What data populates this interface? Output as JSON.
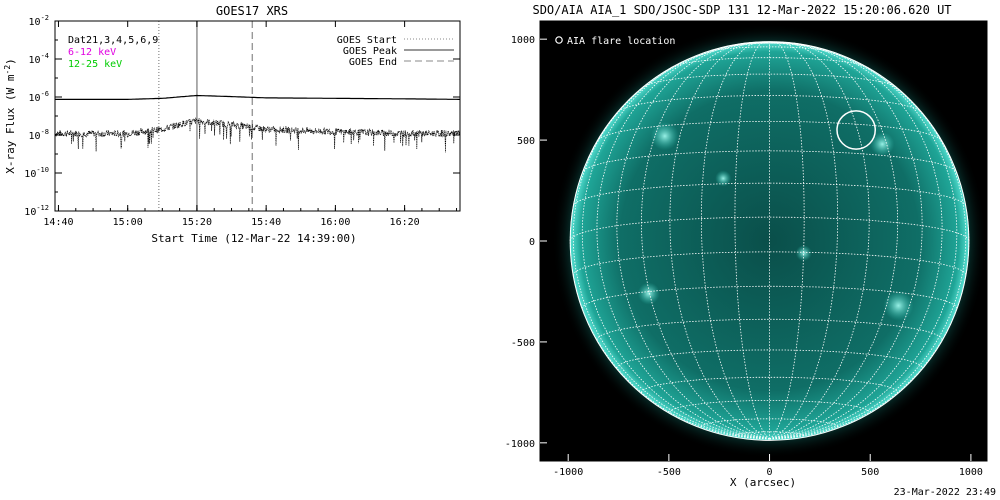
{
  "chart_data": [
    {
      "type": "line",
      "title": "GOES17 XRS",
      "xlabel": "Start Time (12-Mar-22 14:39:00)",
      "ylabel": "X-ray Flux (W m^-2)",
      "yscale": "log",
      "ylim": [
        1e-12,
        0.01
      ],
      "xlim": [
        "14:39",
        "16:36"
      ],
      "x_ticks": [
        "14:40",
        "15:00",
        "15:20",
        "15:40",
        "16:00",
        "16:20"
      ],
      "y_ticks": [
        {
          "base": "10",
          "exp": "-12"
        },
        {
          "base": "10",
          "exp": "-10"
        },
        {
          "base": "10",
          "exp": "-8"
        },
        {
          "base": "10",
          "exp": "-6"
        },
        {
          "base": "10",
          "exp": "-4"
        },
        {
          "base": "10",
          "exp": "-2"
        }
      ],
      "info_lines": [
        {
          "text": "Dat21,3,4,5,6,9",
          "color": "#000000"
        },
        {
          "text": "6-12 keV",
          "color": "#e000e0"
        },
        {
          "text": "12-25 keV",
          "color": "#00cc00"
        }
      ],
      "legend": {
        "placement": "top-right",
        "entries": [
          {
            "label": "GOES Start",
            "style": "dotted"
          },
          {
            "label": "GOES Peak",
            "style": "solid"
          },
          {
            "label": "GOES End",
            "style": "dashed"
          }
        ]
      },
      "markers": {
        "start": "15:09",
        "peak": "15:20",
        "end": "15:36"
      },
      "series": [
        {
          "color": "#000000",
          "style": "solid",
          "x": [
            "14:39",
            "15:00",
            "15:10",
            "15:16",
            "15:20",
            "15:30",
            "15:40",
            "16:00",
            "16:20",
            "16:36"
          ],
          "y": [
            7.5e-07,
            7.5e-07,
            8.5e-07,
            1.05e-06,
            1.2e-06,
            1.05e-06,
            9e-07,
            8.5e-07,
            8e-07,
            7.5e-07
          ]
        },
        {
          "color": "#000000",
          "style": "noisy",
          "x": [
            "14:39",
            "15:00",
            "15:10",
            "15:16",
            "15:20",
            "15:30",
            "15:40",
            "16:00",
            "16:20",
            "16:36"
          ],
          "y": [
            1.2e-08,
            1.2e-08,
            2e-08,
            4e-08,
            5.5e-08,
            3.5e-08,
            2e-08,
            1.5e-08,
            1.2e-08,
            1.2e-08
          ]
        }
      ]
    },
    {
      "type": "heatmap",
      "title": "SDO/AIA AIA_1 SDO/JSOC-SDP 131 12-Mar-2022 15:20:06.620 UT",
      "xlabel": "X (arcsec)",
      "ylabel": "",
      "xlim": [
        -1140,
        1080
      ],
      "ylim": [
        -1090,
        1090
      ],
      "x_ticks": [
        "-1000",
        "-500",
        "0",
        "500",
        "1000"
      ],
      "y_ticks": [
        "-1000",
        "-500",
        "0",
        "500",
        "1000"
      ],
      "legend_label": "AIA flare location",
      "solar_radius_arcsec": 990,
      "flare_location": {
        "x": 430,
        "y": 550,
        "radius": 95
      },
      "colors": {
        "disk": "#0f6e66",
        "limb": "#57e0d2",
        "grid": "#ffffff",
        "background": "#000000"
      }
    }
  ],
  "footer": {
    "timestamp": "23-Mar-2022 23:49"
  }
}
